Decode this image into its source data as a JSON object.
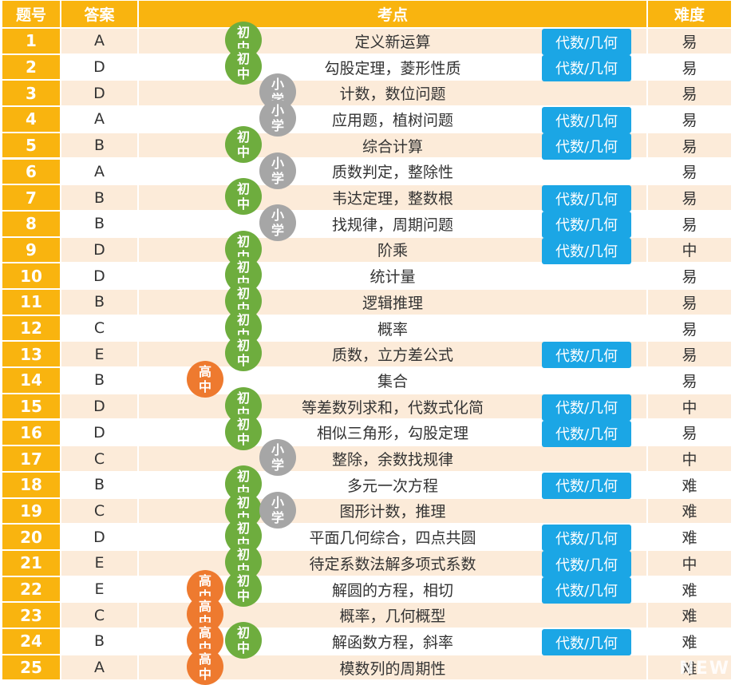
{
  "headers": {
    "num": "题号",
    "answer": "答案",
    "topic": "考点",
    "difficulty": "难度"
  },
  "tag_label": "代数/几何",
  "level_labels": {
    "chu": [
      "初",
      "中"
    ],
    "xiao": [
      "小",
      "学"
    ],
    "gao": [
      "高",
      "中"
    ]
  },
  "rows": [
    {
      "num": "1",
      "answer": "A",
      "topic": "定义新运算",
      "tag": true,
      "difficulty": "易",
      "levels": [
        "chu"
      ]
    },
    {
      "num": "2",
      "answer": "D",
      "topic": "勾股定理，菱形性质",
      "tag": true,
      "difficulty": "易",
      "levels": [
        "chu"
      ]
    },
    {
      "num": "3",
      "answer": "D",
      "topic": "计数，数位问题",
      "tag": false,
      "difficulty": "易",
      "levels": [
        "xiao"
      ]
    },
    {
      "num": "4",
      "answer": "A",
      "topic": "应用题，植树问题",
      "tag": true,
      "difficulty": "易",
      "levels": [
        "xiao"
      ]
    },
    {
      "num": "5",
      "answer": "B",
      "topic": "综合计算",
      "tag": true,
      "difficulty": "易",
      "levels": [
        "chu"
      ]
    },
    {
      "num": "6",
      "answer": "A",
      "topic": "质数判定，整除性",
      "tag": false,
      "difficulty": "易",
      "levels": [
        "xiao"
      ]
    },
    {
      "num": "7",
      "answer": "B",
      "topic": "韦达定理，整数根",
      "tag": true,
      "difficulty": "易",
      "levels": [
        "chu"
      ]
    },
    {
      "num": "8",
      "answer": "B",
      "topic": "找规律，周期问题",
      "tag": true,
      "difficulty": "易",
      "levels": [
        "xiao"
      ]
    },
    {
      "num": "9",
      "answer": "D",
      "topic": "阶乘",
      "tag": true,
      "difficulty": "中",
      "levels": [
        "chu"
      ]
    },
    {
      "num": "10",
      "answer": "D",
      "topic": "统计量",
      "tag": false,
      "difficulty": "易",
      "levels": [
        "chu"
      ]
    },
    {
      "num": "11",
      "answer": "B",
      "topic": "逻辑推理",
      "tag": false,
      "difficulty": "易",
      "levels": [
        "chu"
      ]
    },
    {
      "num": "12",
      "answer": "C",
      "topic": "概率",
      "tag": false,
      "difficulty": "易",
      "levels": [
        "chu"
      ]
    },
    {
      "num": "13",
      "answer": "E",
      "topic": "质数，立方差公式",
      "tag": true,
      "difficulty": "易",
      "levels": [
        "chu"
      ]
    },
    {
      "num": "14",
      "answer": "B",
      "topic": "集合",
      "tag": false,
      "difficulty": "易",
      "levels": [
        "gao"
      ]
    },
    {
      "num": "15",
      "answer": "D",
      "topic": "等差数列求和，代数式化简",
      "tag": true,
      "difficulty": "中",
      "levels": [
        "chu"
      ]
    },
    {
      "num": "16",
      "answer": "D",
      "topic": "相似三角形，勾股定理",
      "tag": true,
      "difficulty": "易",
      "levels": [
        "chu"
      ]
    },
    {
      "num": "17",
      "answer": "C",
      "topic": "整除，余数找规律",
      "tag": false,
      "difficulty": "中",
      "levels": [
        "xiao"
      ]
    },
    {
      "num": "18",
      "answer": "B",
      "topic": "多元一次方程",
      "tag": true,
      "difficulty": "难",
      "levels": [
        "chu"
      ]
    },
    {
      "num": "19",
      "answer": "C",
      "topic": "图形计数，推理",
      "tag": false,
      "difficulty": "难",
      "levels": [
        "chu",
        "xiao"
      ]
    },
    {
      "num": "20",
      "answer": "D",
      "topic": "平面几何综合，四点共圆",
      "tag": true,
      "difficulty": "难",
      "levels": [
        "chu"
      ]
    },
    {
      "num": "21",
      "answer": "E",
      "topic": "待定系数法解多项式系数",
      "tag": true,
      "difficulty": "中",
      "levels": [
        "chu"
      ]
    },
    {
      "num": "22",
      "answer": "E",
      "topic": "解圆的方程，相切",
      "tag": true,
      "difficulty": "难",
      "levels": [
        "gao",
        "chu"
      ]
    },
    {
      "num": "23",
      "answer": "C",
      "topic": "概率，几何概型",
      "tag": false,
      "difficulty": "难",
      "levels": [
        "gao"
      ]
    },
    {
      "num": "24",
      "answer": "B",
      "topic": "解函数方程，斜率",
      "tag": true,
      "difficulty": "难",
      "levels": [
        "gao",
        "chu"
      ]
    },
    {
      "num": "25",
      "answer": "A",
      "topic": "模数列的周期性",
      "tag": false,
      "difficulty": "难",
      "levels": [
        "gao"
      ]
    }
  ],
  "watermark": "NEW"
}
